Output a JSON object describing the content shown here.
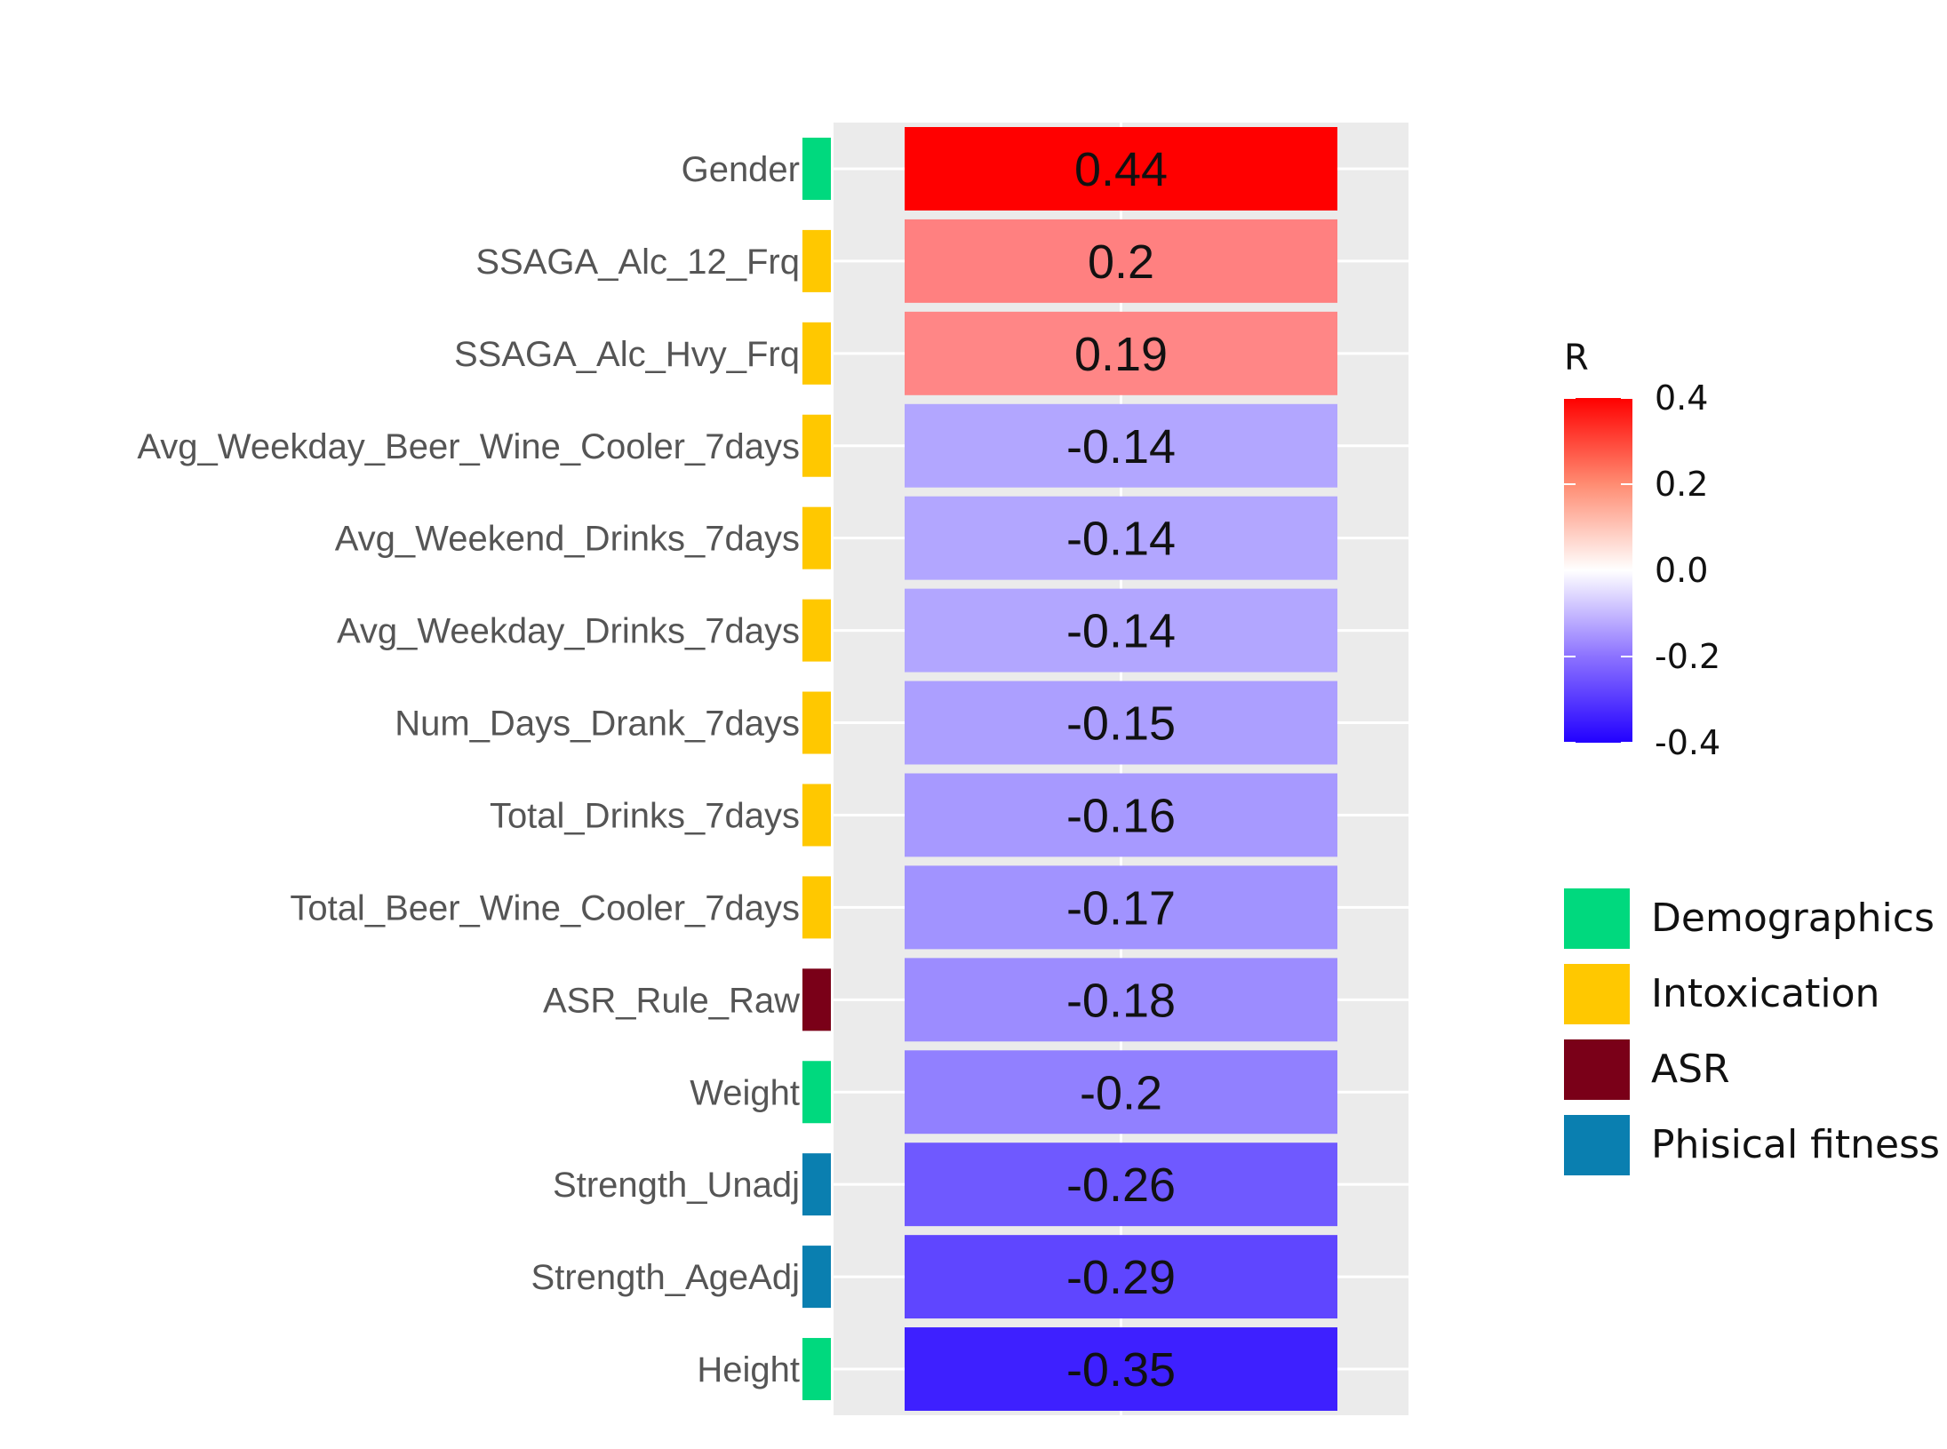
{
  "chart_data": {
    "type": "heatmap",
    "title": "",
    "xlabel": "",
    "ylabel": "",
    "column": "",
    "rows": [
      {
        "label": "Gender",
        "value": 0.44,
        "text": "0.44",
        "category": "Demographics"
      },
      {
        "label": "SSAGA_Alc_12_Frq",
        "value": 0.2,
        "text": "0.2",
        "category": "Intoxication"
      },
      {
        "label": "SSAGA_Alc_Hvy_Frq",
        "value": 0.19,
        "text": "0.19",
        "category": "Intoxication"
      },
      {
        "label": "Avg_Weekday_Beer_Wine_Cooler_7days",
        "value": -0.14,
        "text": "-0.14",
        "category": "Intoxication"
      },
      {
        "label": "Avg_Weekend_Drinks_7days",
        "value": -0.14,
        "text": "-0.14",
        "category": "Intoxication"
      },
      {
        "label": "Avg_Weekday_Drinks_7days",
        "value": -0.14,
        "text": "-0.14",
        "category": "Intoxication"
      },
      {
        "label": "Num_Days_Drank_7days",
        "value": -0.15,
        "text": "-0.15",
        "category": "Intoxication"
      },
      {
        "label": "Total_Drinks_7days",
        "value": -0.16,
        "text": "-0.16",
        "category": "Intoxication"
      },
      {
        "label": "Total_Beer_Wine_Cooler_7days",
        "value": -0.17,
        "text": "-0.17",
        "category": "Intoxication"
      },
      {
        "label": "ASR_Rule_Raw",
        "value": -0.18,
        "text": "-0.18",
        "category": "ASR"
      },
      {
        "label": "Weight",
        "value": -0.2,
        "text": "-0.2",
        "category": "Demographics"
      },
      {
        "label": "Strength_Unadj",
        "value": -0.26,
        "text": "-0.26",
        "category": "Phisical fitness"
      },
      {
        "label": "Strength_AgeAdj",
        "value": -0.29,
        "text": "-0.29",
        "category": "Phisical fitness"
      },
      {
        "label": "Height",
        "value": -0.35,
        "text": "-0.35",
        "category": "Demographics"
      }
    ],
    "color_scale": {
      "title": "R",
      "min": -0.4,
      "max": 0.4,
      "ticks": [
        {
          "value": 0.4,
          "label": "0.4"
        },
        {
          "value": 0.2,
          "label": "0.2"
        },
        {
          "value": 0.0,
          "label": "0.0"
        },
        {
          "value": -0.2,
          "label": "-0.2"
        },
        {
          "value": -0.4,
          "label": "-0.4"
        }
      ],
      "low_color": "#2200ff",
      "mid_color": "#ffffff",
      "high_color": "#ff0000"
    },
    "categories": [
      {
        "name": "Demographics",
        "color": "#00d97e"
      },
      {
        "name": "Intoxication",
        "color": "#ffc800"
      },
      {
        "name": "ASR",
        "color": "#7a0018"
      },
      {
        "name": "Phisical fitness",
        "color": "#0a7fb0"
      }
    ]
  }
}
